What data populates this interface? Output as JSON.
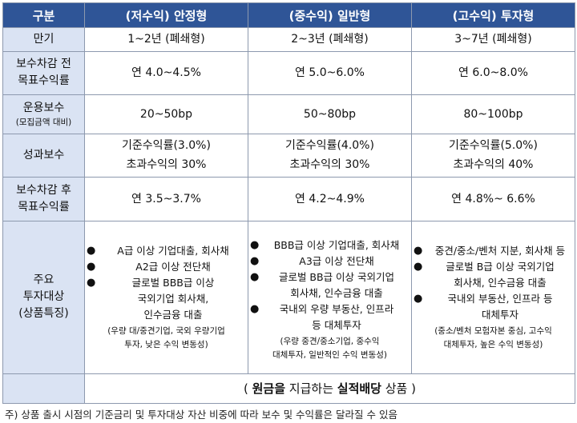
{
  "headers": [
    "구분",
    "(저수익) 안정형",
    "(중수익) 일반형",
    "(고수익) 투자형"
  ],
  "rows": {
    "maturity": {
      "label": "만기",
      "values": [
        "1~2년 (폐쇄형)",
        "2~3년 (폐쇄형)",
        "3~7년 (폐쇄형)"
      ]
    },
    "target_before": {
      "label_lines": [
        "보수차감 전",
        "목표수익률"
      ],
      "values": [
        "연 4.0~4.5%",
        "연 5.0~6.0%",
        "연 6.0~8.0%"
      ]
    },
    "mgmt_fee": {
      "label": "운용보수",
      "sublabel": "(모집금액 대비)",
      "values": [
        "20~50bp",
        "50~80bp",
        "80~100bp"
      ]
    },
    "perf_fee": {
      "label": "성과보수",
      "values": [
        [
          "기준수익률(3.0%)",
          "초과수익의 30%"
        ],
        [
          "기준수익률(4.0%)",
          "초과수익의 30%"
        ],
        [
          "기준수익률(5.0%)",
          "초과수익의 40%"
        ]
      ]
    },
    "target_after": {
      "label_lines": [
        "보수차감 후",
        "목표수익률"
      ],
      "values": [
        "연 3.5~3.7%",
        "연 4.2~4.9%",
        "연 4.8%~ 6.6%"
      ]
    },
    "investments": {
      "label_lines": [
        "주요",
        "투자대상",
        "(상품특징)"
      ],
      "bullet_icon": "●",
      "columns": [
        {
          "items": [
            [
              "A급 이상 기업대출, 회사채"
            ],
            [
              "A2급 이상 전단채"
            ],
            [
              "글로벌 BBB급 이상",
              "국외기업 회사채,",
              "인수금융 대출"
            ]
          ],
          "note": [
            "(우량 대/중견기업, 국외 우량기업",
            "투자, 낮은 수익 변동성)"
          ]
        },
        {
          "items": [
            [
              "BBB급 이상 기업대출, 회사채"
            ],
            [
              "A3급 이상 전단채"
            ],
            [
              "글로벌 BB급 이상 국외기업",
              "회사채, 인수금융 대출"
            ],
            [
              "국내외 우량 부동산, 인프라",
              "등 대체투자"
            ]
          ],
          "note": [
            "(우량 중견/중소기업, 중수익",
            "대체투자, 일반적인 수익 변동성)"
          ]
        },
        {
          "items": [
            [
              "중견/중소/벤처 지분, 회사채 등"
            ],
            [
              "글로벌 B급 이상 국외기업",
              "회사채, 인수금융 대출"
            ],
            [
              "국내외 부동산, 인프라 등",
              "대체투자"
            ]
          ],
          "note": [
            "(중소/벤처 모험자본 중심, 고수익",
            "대체투자, 높은 수익 변동성)"
          ]
        }
      ]
    }
  },
  "footer": {
    "open": "( ",
    "bold1": "원금을",
    "middle": " 지급하는 ",
    "bold2": "실적배당",
    "tail": " 상품 )"
  },
  "footnote": "주) 상품 출시 시점의 기준금리 및 투자대상 자산 비중에 따라 보수 및 수익률은 달라질 수 있음",
  "colors": {
    "header_bg": "#2f5597",
    "label_bg": "#dae3f3",
    "border": "#8d99ae"
  }
}
